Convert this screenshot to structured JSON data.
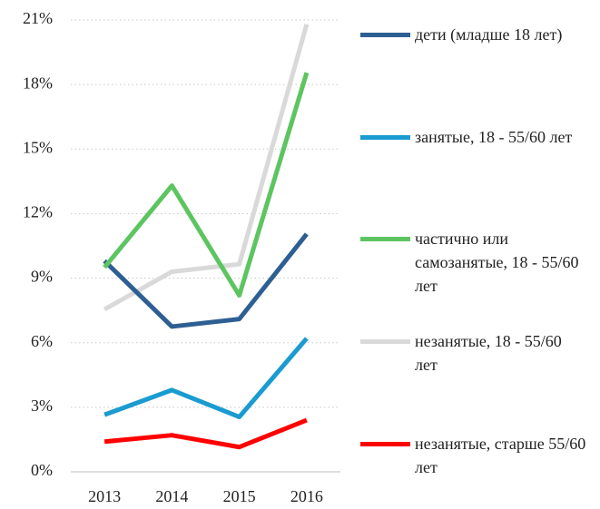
{
  "chart_data": {
    "type": "line",
    "categories": [
      "2013",
      "2014",
      "2015",
      "2016"
    ],
    "series": [
      {
        "name": "дети (младше 18 лет)",
        "color": "#2e5f93",
        "values": [
          9.8,
          6.75,
          7.1,
          11.05
        ]
      },
      {
        "name": "занятые, 18 - 55/60 лет",
        "color": "#1a9bd1",
        "values": [
          2.65,
          3.8,
          2.55,
          6.2
        ]
      },
      {
        "name": "частично или самозанятые, 18 - 55/60 лет",
        "color": "#5dc560",
        "values": [
          9.5,
          13.3,
          8.2,
          18.55
        ]
      },
      {
        "name": "незанятые, 18 - 55/60 лет",
        "color": "#d9d9d9",
        "values": [
          7.55,
          9.3,
          9.65,
          20.8
        ]
      },
      {
        "name": "незанятые, старше 55/60 лет",
        "color": "#ff0000",
        "values": [
          1.4,
          1.7,
          1.15,
          2.4
        ]
      }
    ],
    "ylim": [
      0,
      21
    ],
    "yticks": [
      {
        "value": 0,
        "label": "0%"
      },
      {
        "value": 3,
        "label": "3%"
      },
      {
        "value": 6,
        "label": "6%"
      },
      {
        "value": 9,
        "label": "9%"
      },
      {
        "value": 12,
        "label": "12%"
      },
      {
        "value": 15,
        "label": "15%"
      },
      {
        "value": 18,
        "label": "18%"
      },
      {
        "value": 21,
        "label": "21%"
      }
    ],
    "grid": true,
    "legend": "right"
  }
}
